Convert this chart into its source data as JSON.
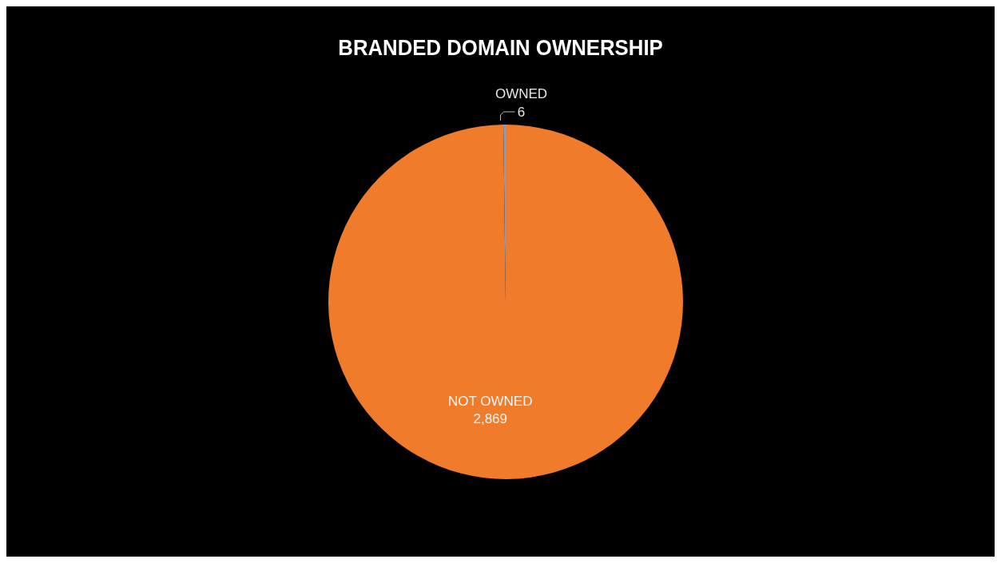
{
  "chart_data": {
    "type": "pie",
    "title": "BRANDED DOMAIN OWNERSHIP",
    "categories": [
      "OWNED",
      "NOT OWNED"
    ],
    "values": [
      6,
      2869
    ],
    "colors": [
      "#8e9cb8",
      "#f07b2a"
    ],
    "value_labels": [
      "6",
      "2,869"
    ]
  }
}
